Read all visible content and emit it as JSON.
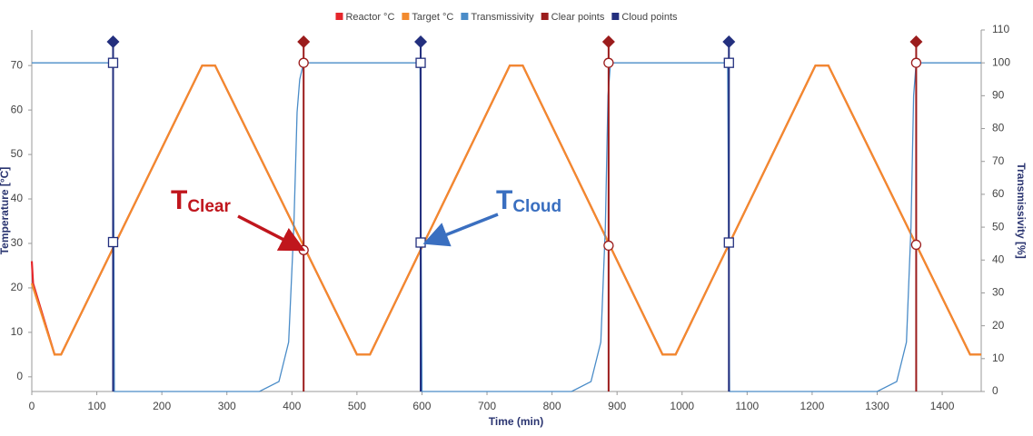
{
  "chart_data": {
    "type": "line",
    "xlabel": "Time (min)",
    "ylabel": "Temperature [°C]",
    "y2label": "Transmissivity [%]",
    "xlim": [
      0,
      1460
    ],
    "xticks": [
      0,
      100,
      200,
      300,
      400,
      500,
      600,
      700,
      800,
      900,
      1000,
      1100,
      1200,
      1300,
      1400
    ],
    "ylim": [
      -3.3,
      78
    ],
    "yticks": [
      0,
      10,
      20,
      30,
      40,
      50,
      60,
      70
    ],
    "y2lim": [
      0,
      110
    ],
    "y2ticks": [
      0,
      10,
      20,
      30,
      40,
      50,
      60,
      70,
      80,
      90,
      100,
      110
    ],
    "legend": "top",
    "series": [
      {
        "name": "Reactor °C",
        "color": "#e5262b",
        "x": [
          0,
          2,
          35,
          45,
          262,
          282,
          500,
          520,
          735,
          755,
          970,
          990,
          1205,
          1225,
          1443,
          1460
        ],
        "values": [
          26,
          21,
          5,
          5,
          70,
          70,
          5,
          5,
          70,
          70,
          5,
          5,
          70,
          70,
          5,
          5
        ]
      },
      {
        "name": "Target °C",
        "color": "#f28a2e",
        "x": [
          0,
          35,
          45,
          262,
          282,
          500,
          520,
          735,
          755,
          970,
          990,
          1205,
          1225,
          1443,
          1460
        ],
        "values": [
          21,
          5,
          5,
          70,
          70,
          5,
          5,
          70,
          70,
          5,
          5,
          70,
          70,
          5,
          5
        ]
      },
      {
        "name": "Transmissivity",
        "color": "#4a8cc8",
        "axis": "y2",
        "x": [
          0,
          125,
          127,
          350,
          380,
          395,
          403,
          408,
          412,
          418,
          597,
          600,
          830,
          860,
          875,
          882,
          886,
          890,
          1070,
          1073,
          1300,
          1330,
          1345,
          1352,
          1356,
          1360,
          1460
        ],
        "values": [
          100,
          100,
          0,
          0,
          3,
          15,
          50,
          85,
          95,
          100,
          100,
          0,
          0,
          3,
          15,
          50,
          90,
          100,
          100,
          0,
          0,
          3,
          15,
          50,
          90,
          100,
          100
        ]
      },
      {
        "name": "Clear points",
        "color": "#9b1c1c",
        "marker": "circle",
        "x": [
          418,
          887,
          1360
        ],
        "values": [
          28.5,
          29.5,
          29.7
        ],
        "transmissivity": [
          100,
          100,
          100
        ]
      },
      {
        "name": "Cloud points",
        "color": "#232f7e",
        "marker": "square",
        "x": [
          125,
          598,
          1072
        ],
        "values": [
          30.3,
          30.2,
          30.2
        ],
        "transmissivity": [
          100,
          100,
          100
        ]
      }
    ],
    "annotations": [
      {
        "text": "T",
        "subscript": "Clear",
        "color": "#c0161d"
      },
      {
        "text": "T",
        "subscript": "Cloud",
        "color": "#3a6fc0"
      }
    ]
  }
}
